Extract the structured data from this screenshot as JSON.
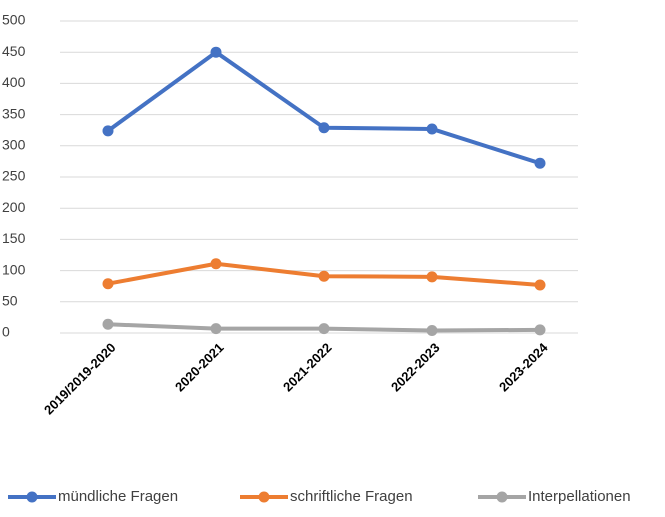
{
  "chart_data": {
    "type": "line",
    "categories": [
      "2019/2019-2020",
      "2020-2021",
      "2021-2022",
      "2022-2023",
      "2023-2024"
    ],
    "series": [
      {
        "name": "mündliche Fragen",
        "color": "#4472c4",
        "values": [
          324,
          450,
          329,
          327,
          272
        ]
      },
      {
        "name": "schriftliche Fragen",
        "color": "#ed7d31",
        "values": [
          79,
          111,
          91,
          90,
          77
        ]
      },
      {
        "name": "Interpellationen",
        "color": "#a5a5a5",
        "values": [
          14,
          7,
          7,
          4,
          5
        ]
      }
    ],
    "ylim": [
      0,
      500
    ],
    "yticks": [
      0,
      50,
      100,
      150,
      200,
      250,
      300,
      350,
      400,
      450,
      500
    ],
    "grid": true,
    "legend": "bottom"
  }
}
